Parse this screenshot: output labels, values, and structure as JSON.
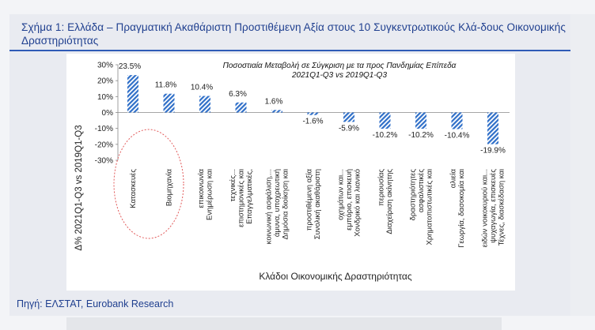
{
  "figure": {
    "title": "Σχήμα 1: Ελλάδα – Πραγματική Ακαθάριστη Προστιθέμενη Αξία στους 10 Συγκεντρωτικούς Κλά-δους Οικονομικής Δραστηριότητας",
    "source": "Πηγή: ΕΛΣΤΑΤ, Eurobank Research"
  },
  "colors": {
    "title": "#1f3f8f",
    "bar": "#2f6fc8",
    "circle": "#e25b5b"
  },
  "chart_data": {
    "type": "bar",
    "title": "Ποσοστιαία Μεταβολή σε Σύγκριση με τα προς Πανδημίας Επίπεδα",
    "subtitle": "2021Q1-Q3 vs 2019Q1-Q3",
    "xlabel": "Κλάδοι Οικονομικής Δραστηριότητας",
    "ylabel": "Δ% 2021Q1-Q3 vs 2019Q1-Q3",
    "ylim": [
      -30,
      30
    ],
    "yticks": [
      "30%",
      "20%",
      "10%",
      "0%",
      "-10%",
      "-20%",
      "-30%"
    ],
    "categories": [
      [
        "Κατασκευές"
      ],
      [
        "Βιομηχανία"
      ],
      [
        "Ενημέρωση και",
        "επικοινωνία"
      ],
      [
        "Επαγγελματικές,",
        "επιστημονικές και",
        "τεχνικές..."
      ],
      [
        "Δημόσια διοίκηση και",
        "άμυνα, υποχρεωτική",
        "κοινωνική ασφάλιση,..."
      ],
      [
        "Συνολική ακαθάριστη",
        "προστιθέμενη αξία"
      ],
      [
        "Χονδρικό και λιανικό",
        "εμπόριο, επισκευή",
        "οχημάτων και..."
      ],
      [
        "Διαχείριση ακίνητης",
        "περιουσίας"
      ],
      [
        "Χρηματοπιστωτικές και",
        "ασφαλιστικές",
        "δραστηριότητες"
      ],
      [
        "Γεωργία, δασοκομία και",
        "αλιεία"
      ],
      [
        "Τέχνες, διασκέδαση και",
        "ψυχαγωγία, επισκευές",
        "ειδών νοικοκυριού και..."
      ]
    ],
    "values": [
      23.5,
      11.8,
      10.4,
      6.3,
      1.6,
      -1.6,
      -5.9,
      -10.2,
      -10.2,
      -10.4,
      -19.9
    ],
    "data_labels": [
      "23.5%",
      "11.8%",
      "10.4%",
      "6.3%",
      "1.6%",
      "-1.6%",
      "-5.9%",
      "-10.2%",
      "-10.2%",
      "-10.4%",
      "-19.9%"
    ],
    "highlighted_categories": [
      0,
      1
    ],
    "grid": false,
    "bar_fill": "diagonal-hatch"
  }
}
